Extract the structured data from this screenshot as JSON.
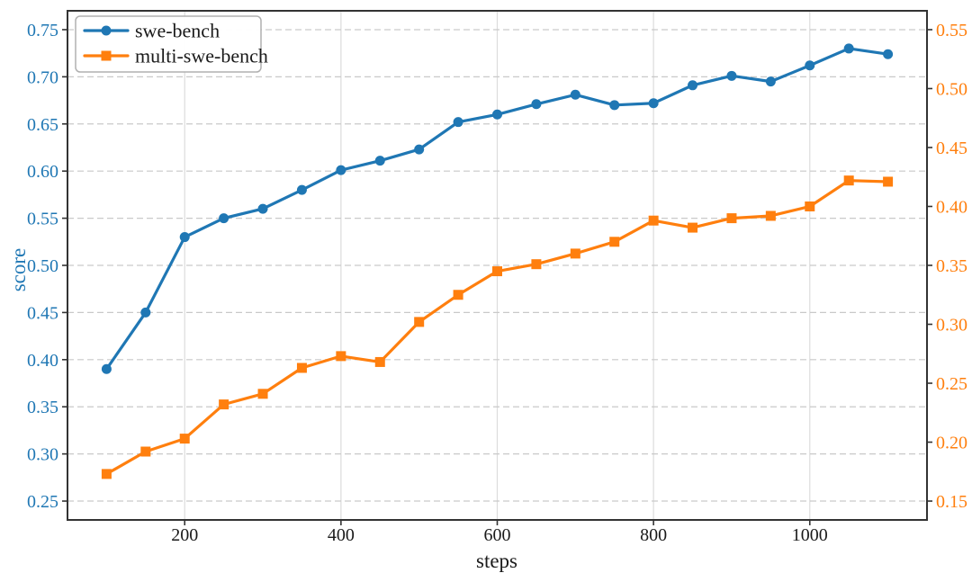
{
  "chart_data": {
    "type": "line",
    "title": "",
    "xlabel": "steps",
    "ylabel": "score",
    "x": [
      100,
      150,
      200,
      250,
      300,
      350,
      400,
      450,
      500,
      550,
      600,
      650,
      700,
      750,
      800,
      850,
      900,
      950,
      1000,
      1050,
      1100
    ],
    "series": [
      {
        "name": "swe-bench",
        "axis": "left",
        "color": "#1f77b4",
        "marker": "circle",
        "values": [
          0.39,
          0.45,
          0.53,
          0.55,
          0.56,
          0.58,
          0.601,
          0.611,
          0.623,
          0.652,
          0.66,
          0.671,
          0.681,
          0.67,
          0.672,
          0.691,
          0.701,
          0.695,
          0.712,
          0.73,
          0.724
        ]
      },
      {
        "name": "multi-swe-bench",
        "axis": "right",
        "color": "#ff7f0e",
        "marker": "square",
        "values": [
          0.173,
          0.192,
          0.203,
          0.232,
          0.241,
          0.263,
          0.273,
          0.268,
          0.302,
          0.325,
          0.345,
          0.351,
          0.36,
          0.37,
          0.388,
          0.382,
          0.39,
          0.392,
          0.4,
          0.422,
          0.421
        ]
      }
    ],
    "xlim": [
      50,
      1150
    ],
    "x_ticks": {
      "values": [
        200,
        400,
        600,
        800,
        1000
      ],
      "labels": [
        "200",
        "400",
        "600",
        "800",
        "1000"
      ]
    },
    "y_left": {
      "label": "score",
      "color": "#1f77b4",
      "lim": [
        0.23,
        0.77
      ],
      "tick_values": [
        0.25,
        0.3,
        0.35,
        0.4,
        0.45,
        0.5,
        0.55,
        0.6,
        0.65,
        0.7,
        0.75
      ],
      "tick_labels": [
        "0.25",
        "0.30",
        "0.35",
        "0.40",
        "0.45",
        "0.50",
        "0.55",
        "0.60",
        "0.65",
        "0.70",
        "0.75"
      ]
    },
    "y_right": {
      "label": "",
      "color": "#ff7f0e",
      "lim": [
        0.134,
        0.566
      ],
      "tick_values": [
        0.15,
        0.2,
        0.25,
        0.3,
        0.35,
        0.4,
        0.45,
        0.5,
        0.55
      ],
      "tick_labels": [
        "0.15",
        "0.20",
        "0.25",
        "0.30",
        "0.35",
        "0.40",
        "0.45",
        "0.50",
        "0.55"
      ]
    },
    "grid": {
      "horizontal_style": "dashed",
      "vertical_style": "solid",
      "on": true
    },
    "legend": {
      "position": "upper-left",
      "entries": [
        "swe-bench",
        "multi-swe-bench"
      ]
    }
  },
  "colors": {
    "swe_bench": "#1f77b4",
    "multi_swe_bench": "#ff7f0e",
    "spine": "#333333",
    "grid_h": "#c9c9c9",
    "grid_v": "#dcdcdc",
    "legend_border": "#b0b0b0",
    "text": "#1a1a1a"
  }
}
